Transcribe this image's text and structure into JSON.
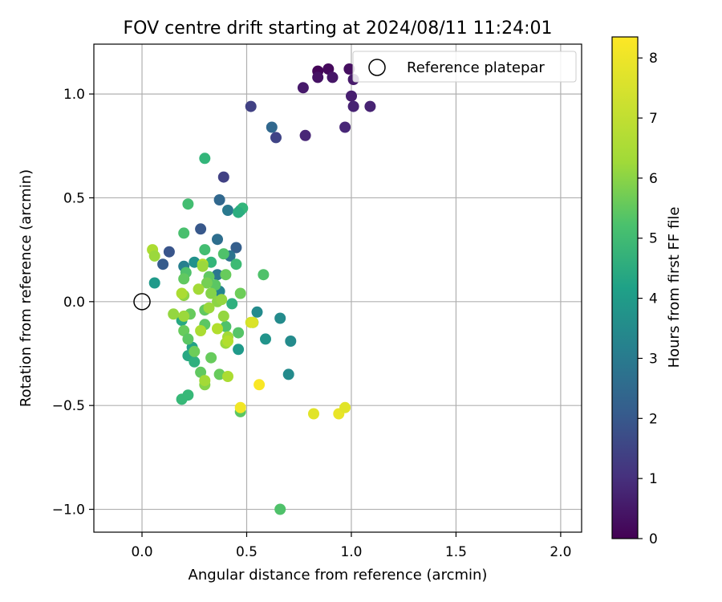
{
  "chart_data": {
    "type": "scatter",
    "title": "FOV centre drift starting at 2024/08/11 11:24:01",
    "xlabel": "Angular distance from reference (arcmin)",
    "ylabel": "Rotation from reference (arcmin)",
    "xlim": [
      -0.23,
      2.1
    ],
    "ylim": [
      -1.11,
      1.24
    ],
    "xticks": [
      0.0,
      0.5,
      1.0,
      1.5,
      2.0
    ],
    "xtick_labels": [
      "0.0",
      "0.5",
      "1.0",
      "1.5",
      "2.0"
    ],
    "yticks": [
      1.0,
      0.5,
      0.0,
      -0.5,
      -1.0
    ],
    "ytick_labels": [
      "1.0",
      "0.5",
      "0.0",
      "−0.5",
      "−1.0"
    ],
    "grid": true,
    "legend": {
      "position": "top-right",
      "entries": [
        "Reference platepar"
      ]
    },
    "reference_point": {
      "x": 0.0,
      "y": 0.0,
      "label": "Reference platepar"
    },
    "colorbar": {
      "label": "Hours from first FF file",
      "colormap": "viridis",
      "min": 0,
      "max": 8.35,
      "ticks": [
        0,
        1,
        2,
        3,
        4,
        5,
        6,
        7,
        8
      ],
      "tick_labels": [
        "0",
        "1",
        "2",
        "3",
        "4",
        "5",
        "6",
        "7",
        "8"
      ]
    },
    "points": [
      {
        "x": 0.84,
        "y": 1.11,
        "c": 0.1
      },
      {
        "x": 0.89,
        "y": 1.12,
        "c": 0.2
      },
      {
        "x": 0.99,
        "y": 1.12,
        "c": 0.3
      },
      {
        "x": 0.84,
        "y": 1.08,
        "c": 0.4
      },
      {
        "x": 0.91,
        "y": 1.08,
        "c": 0.5
      },
      {
        "x": 1.01,
        "y": 1.07,
        "c": 0.6
      },
      {
        "x": 0.77,
        "y": 1.03,
        "c": 0.6
      },
      {
        "x": 1.0,
        "y": 0.99,
        "c": 0.7
      },
      {
        "x": 1.01,
        "y": 0.94,
        "c": 0.8
      },
      {
        "x": 1.09,
        "y": 0.94,
        "c": 0.8
      },
      {
        "x": 0.97,
        "y": 0.84,
        "c": 0.9
      },
      {
        "x": 0.78,
        "y": 0.8,
        "c": 0.9
      },
      {
        "x": 0.52,
        "y": 0.94,
        "c": 1.6
      },
      {
        "x": 0.64,
        "y": 0.79,
        "c": 1.7
      },
      {
        "x": 0.62,
        "y": 0.84,
        "c": 2.8
      },
      {
        "x": 0.39,
        "y": 0.6,
        "c": 1.6
      },
      {
        "x": 0.13,
        "y": 0.24,
        "c": 2.2
      },
      {
        "x": 0.1,
        "y": 0.18,
        "c": 2.4
      },
      {
        "x": 0.28,
        "y": 0.35,
        "c": 2.3
      },
      {
        "x": 0.45,
        "y": 0.26,
        "c": 2.5
      },
      {
        "x": 0.37,
        "y": 0.49,
        "c": 2.8
      },
      {
        "x": 0.36,
        "y": 0.3,
        "c": 3.0
      },
      {
        "x": 0.41,
        "y": 0.44,
        "c": 3.4
      },
      {
        "x": 0.42,
        "y": 0.22,
        "c": 3.2
      },
      {
        "x": 0.36,
        "y": 0.13,
        "c": 3.3
      },
      {
        "x": 0.2,
        "y": 0.17,
        "c": 3.6
      },
      {
        "x": 0.25,
        "y": 0.19,
        "c": 4.2
      },
      {
        "x": 0.06,
        "y": 0.09,
        "c": 4.5
      },
      {
        "x": 0.37,
        "y": 0.05,
        "c": 3.8
      },
      {
        "x": 0.53,
        "y": -0.1,
        "c": 4.2
      },
      {
        "x": 0.55,
        "y": -0.05,
        "c": 4.0
      },
      {
        "x": 0.66,
        "y": -0.08,
        "c": 4.0
      },
      {
        "x": 0.71,
        "y": -0.19,
        "c": 4.0
      },
      {
        "x": 0.59,
        "y": -0.18,
        "c": 4.3
      },
      {
        "x": 0.7,
        "y": -0.35,
        "c": 4.0
      },
      {
        "x": 0.46,
        "y": -0.23,
        "c": 4.5
      },
      {
        "x": 0.47,
        "y": 0.44,
        "c": 4.7
      },
      {
        "x": 0.48,
        "y": 0.45,
        "c": 5.5
      },
      {
        "x": 0.46,
        "y": 0.43,
        "c": 5.2
      },
      {
        "x": 0.43,
        "y": -0.01,
        "c": 5.3
      },
      {
        "x": 0.24,
        "y": -0.22,
        "c": 4.8
      },
      {
        "x": 0.22,
        "y": -0.26,
        "c": 5.0
      },
      {
        "x": 0.25,
        "y": -0.29,
        "c": 5.3
      },
      {
        "x": 0.19,
        "y": -0.47,
        "c": 5.6
      },
      {
        "x": 0.22,
        "y": -0.45,
        "c": 5.6
      },
      {
        "x": 0.19,
        "y": -0.09,
        "c": 5.0
      },
      {
        "x": 0.3,
        "y": 0.69,
        "c": 5.5
      },
      {
        "x": 0.22,
        "y": 0.47,
        "c": 5.8
      },
      {
        "x": 0.2,
        "y": 0.33,
        "c": 5.9
      },
      {
        "x": 0.3,
        "y": 0.25,
        "c": 5.8
      },
      {
        "x": 0.33,
        "y": 0.19,
        "c": 5.5
      },
      {
        "x": 0.39,
        "y": 0.23,
        "c": 6.0
      },
      {
        "x": 0.45,
        "y": 0.18,
        "c": 5.7
      },
      {
        "x": 0.58,
        "y": 0.13,
        "c": 6.0
      },
      {
        "x": 0.21,
        "y": 0.14,
        "c": 6.0
      },
      {
        "x": 0.2,
        "y": 0.11,
        "c": 6.3
      },
      {
        "x": 0.32,
        "y": 0.12,
        "c": 6.3
      },
      {
        "x": 0.35,
        "y": 0.08,
        "c": 6.2
      },
      {
        "x": 0.31,
        "y": 0.09,
        "c": 6.6
      },
      {
        "x": 0.4,
        "y": 0.13,
        "c": 6.4
      },
      {
        "x": 0.47,
        "y": 0.04,
        "c": 6.5
      },
      {
        "x": 0.33,
        "y": 0.04,
        "c": 6.8
      },
      {
        "x": 0.3,
        "y": -0.04,
        "c": 6.3
      },
      {
        "x": 0.23,
        "y": -0.06,
        "c": 6.4
      },
      {
        "x": 0.2,
        "y": -0.14,
        "c": 6.4
      },
      {
        "x": 0.3,
        "y": -0.11,
        "c": 6.2
      },
      {
        "x": 0.4,
        "y": -0.12,
        "c": 6.0
      },
      {
        "x": 0.46,
        "y": -0.15,
        "c": 6.1
      },
      {
        "x": 0.22,
        "y": -0.18,
        "c": 6.2
      },
      {
        "x": 0.25,
        "y": -0.24,
        "c": 6.5
      },
      {
        "x": 0.33,
        "y": -0.27,
        "c": 6.4
      },
      {
        "x": 0.28,
        "y": -0.34,
        "c": 6.3
      },
      {
        "x": 0.3,
        "y": -0.4,
        "c": 6.8
      },
      {
        "x": 0.37,
        "y": -0.35,
        "c": 6.4
      },
      {
        "x": 0.47,
        "y": -0.53,
        "c": 6.2
      },
      {
        "x": 0.66,
        "y": -1.0,
        "c": 6.0
      },
      {
        "x": 0.36,
        "y": 0.0,
        "c": 6.9
      },
      {
        "x": 0.38,
        "y": 0.01,
        "c": 7.0
      },
      {
        "x": 0.32,
        "y": -0.03,
        "c": 7.1
      },
      {
        "x": 0.2,
        "y": 0.03,
        "c": 6.9
      },
      {
        "x": 0.19,
        "y": 0.04,
        "c": 7.3
      },
      {
        "x": 0.15,
        "y": -0.06,
        "c": 7.0
      },
      {
        "x": 0.2,
        "y": -0.07,
        "c": 7.1
      },
      {
        "x": 0.05,
        "y": 0.25,
        "c": 7.3
      },
      {
        "x": 0.06,
        "y": 0.22,
        "c": 7.1
      },
      {
        "x": 0.27,
        "y": 0.06,
        "c": 7.2
      },
      {
        "x": 0.29,
        "y": 0.18,
        "c": 7.4
      },
      {
        "x": 0.29,
        "y": 0.17,
        "c": 7.1
      },
      {
        "x": 0.36,
        "y": -0.13,
        "c": 7.4
      },
      {
        "x": 0.39,
        "y": -0.07,
        "c": 7.0
      },
      {
        "x": 0.41,
        "y": -0.17,
        "c": 7.2
      },
      {
        "x": 0.4,
        "y": -0.2,
        "c": 7.1
      },
      {
        "x": 0.41,
        "y": -0.19,
        "c": 7.4
      },
      {
        "x": 0.28,
        "y": -0.14,
        "c": 7.3
      },
      {
        "x": 0.3,
        "y": -0.38,
        "c": 7.2
      },
      {
        "x": 0.41,
        "y": -0.36,
        "c": 7.3
      },
      {
        "x": 0.52,
        "y": -0.1,
        "c": 7.8
      },
      {
        "x": 0.53,
        "y": -0.1,
        "c": 7.9
      },
      {
        "x": 0.56,
        "y": -0.4,
        "c": 8.3
      },
      {
        "x": 0.47,
        "y": -0.51,
        "c": 8.2
      },
      {
        "x": 0.82,
        "y": -0.54,
        "c": 8.0
      },
      {
        "x": 0.94,
        "y": -0.54,
        "c": 8.1
      },
      {
        "x": 0.97,
        "y": -0.51,
        "c": 8.0
      }
    ]
  }
}
